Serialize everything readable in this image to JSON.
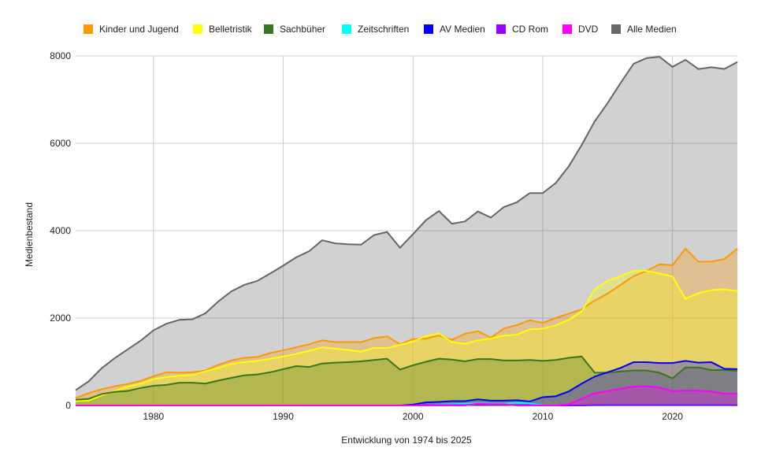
{
  "chart_data": {
    "type": "area",
    "title": "",
    "xlabel": "Entwicklung von 1974 bis 2025",
    "ylabel": "Medienbestand",
    "xlim": [
      1974,
      2025
    ],
    "ylim": [
      0,
      8000
    ],
    "yticks": [
      0,
      2000,
      4000,
      6000,
      8000
    ],
    "xticks": [
      1980,
      1990,
      2000,
      2010,
      2020
    ],
    "grid": true,
    "legend": "top",
    "x": [
      1974,
      1975,
      1976,
      1977,
      1978,
      1979,
      1980,
      1981,
      1982,
      1983,
      1984,
      1985,
      1986,
      1987,
      1988,
      1989,
      1990,
      1991,
      1992,
      1993,
      1994,
      1995,
      1996,
      1997,
      1998,
      1999,
      2000,
      2001,
      2002,
      2003,
      2004,
      2005,
      2006,
      2007,
      2008,
      2009,
      2010,
      2011,
      2012,
      2013,
      2014,
      2015,
      2016,
      2017,
      2018,
      2019,
      2020,
      2021,
      2022,
      2023,
      2024,
      2025
    ],
    "series": [
      {
        "name": "Kinder und Jugend",
        "color": "#ff9900",
        "values": [
          170,
          280,
          370,
          440,
          490,
          560,
          670,
          760,
          750,
          760,
          800,
          930,
          1030,
          1090,
          1110,
          1200,
          1260,
          1330,
          1400,
          1490,
          1450,
          1450,
          1450,
          1540,
          1580,
          1400,
          1520,
          1530,
          1600,
          1500,
          1640,
          1700,
          1550,
          1760,
          1840,
          1950,
          1890,
          2000,
          2100,
          2200,
          2400,
          2560,
          2760,
          2960,
          3080,
          3230,
          3210,
          3590,
          3290,
          3290,
          3350,
          3590
        ]
      },
      {
        "name": "Belletristik",
        "color": "#ffff00",
        "values": [
          100,
          110,
          230,
          330,
          430,
          500,
          600,
          650,
          680,
          700,
          780,
          860,
          950,
          990,
          1020,
          1070,
          1120,
          1180,
          1250,
          1330,
          1300,
          1270,
          1230,
          1320,
          1310,
          1390,
          1460,
          1590,
          1650,
          1450,
          1410,
          1490,
          1530,
          1600,
          1620,
          1740,
          1760,
          1830,
          1960,
          2150,
          2650,
          2850,
          2960,
          3080,
          3080,
          3020,
          2950,
          2440,
          2570,
          2640,
          2660,
          2620
        ]
      },
      {
        "name": "Sachbüher",
        "color": "#38761d",
        "values": [
          130,
          150,
          260,
          310,
          330,
          400,
          450,
          470,
          520,
          520,
          500,
          570,
          630,
          690,
          710,
          760,
          830,
          900,
          880,
          960,
          980,
          990,
          1010,
          1040,
          1070,
          820,
          920,
          1000,
          1070,
          1050,
          1010,
          1060,
          1060,
          1030,
          1030,
          1040,
          1020,
          1040,
          1090,
          1120,
          750,
          750,
          780,
          800,
          800,
          750,
          620,
          870,
          870,
          810,
          810,
          790
        ]
      },
      {
        "name": "Zeitschriften",
        "color": "#00ffff",
        "values": [
          0,
          0,
          0,
          0,
          0,
          0,
          0,
          0,
          0,
          0,
          0,
          0,
          0,
          0,
          0,
          0,
          0,
          0,
          0,
          0,
          0,
          0,
          0,
          0,
          0,
          0,
          0,
          10,
          20,
          30,
          40,
          50,
          40,
          40,
          60,
          50,
          0,
          0,
          0,
          0,
          0,
          0,
          0,
          0,
          0,
          0,
          0,
          0,
          0,
          0,
          0,
          0
        ]
      },
      {
        "name": "AV Medien",
        "color": "#0000ff",
        "values": [
          0,
          0,
          0,
          0,
          0,
          0,
          0,
          0,
          0,
          0,
          0,
          0,
          0,
          0,
          0,
          0,
          0,
          0,
          0,
          0,
          0,
          0,
          0,
          0,
          0,
          0,
          20,
          70,
          80,
          100,
          100,
          140,
          110,
          110,
          120,
          90,
          190,
          210,
          320,
          500,
          660,
          760,
          860,
          990,
          990,
          970,
          970,
          1020,
          980,
          990,
          840,
          830
        ]
      },
      {
        "name": "CD Rom",
        "color": "#9900ff",
        "values": [
          0,
          0,
          0,
          0,
          0,
          0,
          0,
          0,
          0,
          0,
          0,
          0,
          0,
          0,
          0,
          0,
          0,
          0,
          0,
          0,
          0,
          0,
          0,
          0,
          0,
          0,
          0,
          10,
          10,
          10,
          10,
          20,
          20,
          20,
          10,
          10,
          0,
          0,
          0,
          0,
          10,
          10,
          10,
          10,
          10,
          10,
          10,
          10,
          10,
          10,
          10,
          10
        ]
      },
      {
        "name": "DVD",
        "color": "#ff00ff",
        "values": [
          0,
          0,
          0,
          0,
          0,
          0,
          0,
          0,
          0,
          0,
          0,
          0,
          0,
          0,
          0,
          0,
          0,
          0,
          0,
          0,
          0,
          0,
          0,
          0,
          0,
          0,
          0,
          0,
          0,
          0,
          0,
          40,
          30,
          30,
          0,
          0,
          0,
          0,
          30,
          150,
          280,
          330,
          380,
          430,
          440,
          410,
          330,
          340,
          340,
          320,
          270,
          270
        ]
      },
      {
        "name": "Alle Medien",
        "color": "#666666",
        "values": [
          350,
          550,
          850,
          1080,
          1280,
          1480,
          1720,
          1870,
          1960,
          1970,
          2110,
          2380,
          2610,
          2760,
          2850,
          3020,
          3200,
          3390,
          3530,
          3780,
          3710,
          3690,
          3680,
          3900,
          3970,
          3610,
          3920,
          4240,
          4450,
          4160,
          4210,
          4440,
          4300,
          4540,
          4650,
          4860,
          4860,
          5090,
          5470,
          5960,
          6500,
          6920,
          7380,
          7820,
          7950,
          7980,
          7750,
          7910,
          7700,
          7740,
          7700,
          7860
        ]
      }
    ]
  }
}
